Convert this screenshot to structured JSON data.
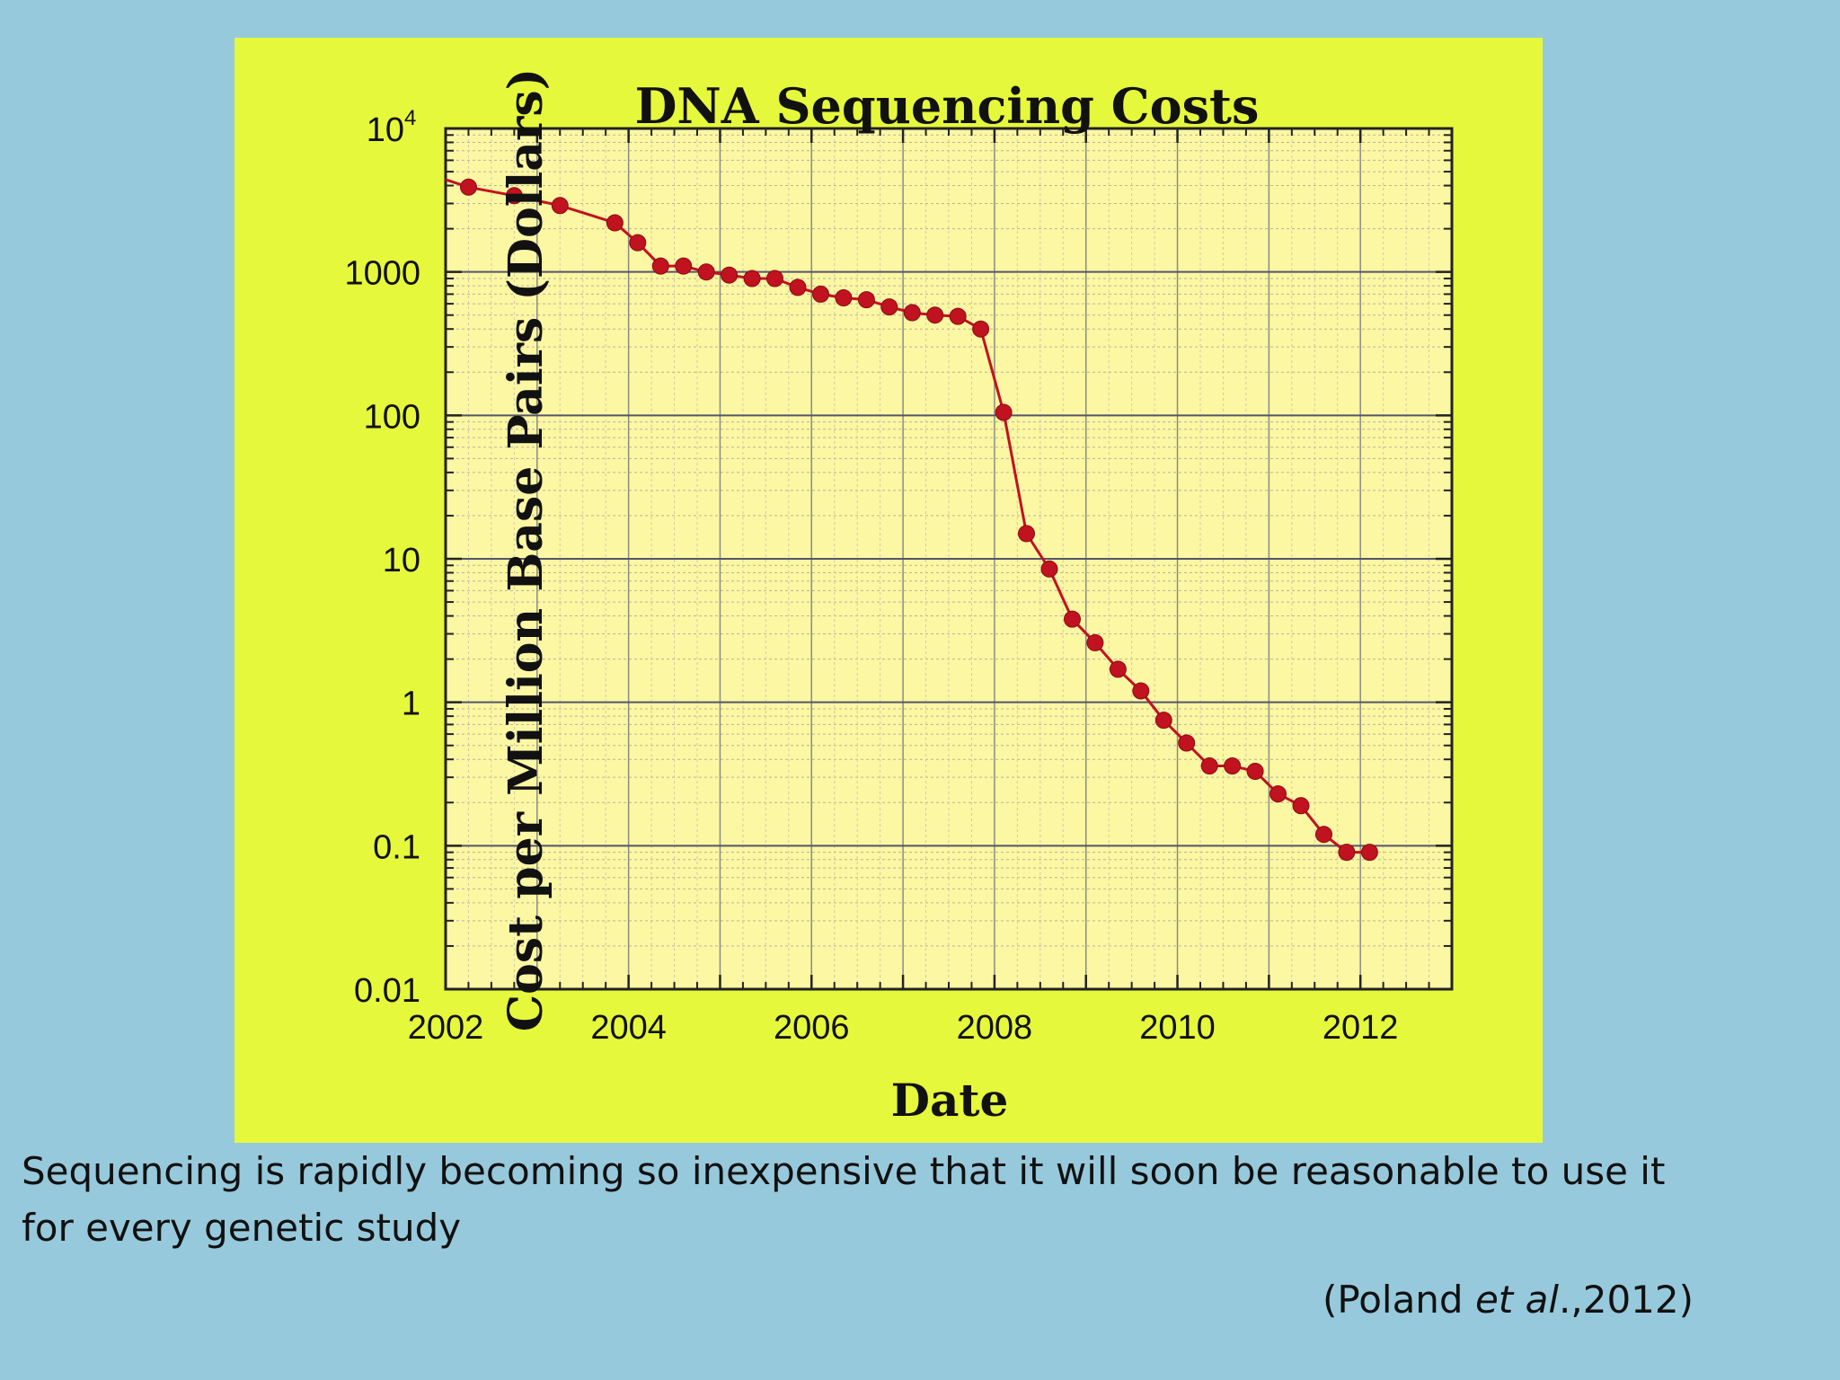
{
  "colors": {
    "page_background": "#97c9dc",
    "chart_background": "#e6f83b",
    "plot_background": "#fbf7a3",
    "series": "#c1121f"
  },
  "chart_data": {
    "type": "line",
    "title": "DNA Sequencing Costs",
    "xlabel": "Date",
    "ylabel": "Cost per Million Base Pairs (Dollars)",
    "x_scale": "linear",
    "y_scale": "log",
    "xlim": [
      2002,
      2013
    ],
    "ylim": [
      0.01,
      10000
    ],
    "x_ticks": [
      "2002",
      "2004",
      "2006",
      "2008",
      "2010",
      "2012"
    ],
    "y_ticks": [
      {
        "value": 0.01,
        "label": "0.01"
      },
      {
        "value": 0.1,
        "label": "0.1"
      },
      {
        "value": 1,
        "label": "1"
      },
      {
        "value": 10,
        "label": "10"
      },
      {
        "value": 100,
        "label": "100"
      },
      {
        "value": 1000,
        "label": "1000"
      },
      {
        "value": 10000,
        "label": "10",
        "sup": "4"
      }
    ],
    "grid": true,
    "legend": "none",
    "series": [
      {
        "marker": "circle",
        "x": [
          2002.25,
          2002.75,
          2003.25,
          2003.85,
          2004.1,
          2004.35,
          2004.6,
          2004.85,
          2005.1,
          2005.35,
          2005.6,
          2005.85,
          2006.1,
          2006.35,
          2006.6,
          2006.85,
          2007.1,
          2007.35,
          2007.6,
          2007.85,
          2008.1,
          2008.35,
          2008.6,
          2008.85,
          2009.1,
          2009.35,
          2009.6,
          2009.85,
          2010.1,
          2010.35,
          2010.6,
          2010.85,
          2011.1,
          2011.35,
          2011.6,
          2011.85,
          2012.1
        ],
        "y": [
          3900,
          3400,
          2900,
          2200,
          1600,
          1100,
          1100,
          1000,
          950,
          900,
          900,
          780,
          700,
          660,
          640,
          570,
          520,
          500,
          490,
          400,
          105,
          15,
          8.5,
          3.8,
          2.6,
          1.7,
          1.2,
          0.75,
          0.52,
          0.36,
          0.36,
          0.33,
          0.23,
          0.19,
          0.12,
          0.09,
          0.09
        ]
      }
    ]
  },
  "caption": "Sequencing is rapidly becoming so inexpensive that it will soon be reasonable to use it for every genetic study",
  "citation": {
    "prefix": "(Poland ",
    "italic": "et al",
    "suffix": ".,2012)"
  }
}
